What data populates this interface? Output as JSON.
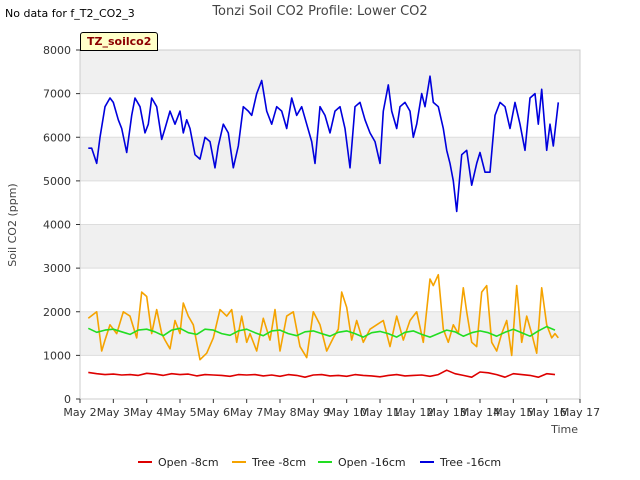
{
  "header": {
    "nodata_text": "No data for f_T2_CO2_3",
    "title": "Tonzi Soil CO2 Profile: Lower CO2",
    "site_badge": "TZ_soilco2"
  },
  "chart_data": {
    "type": "line",
    "title": "Tonzi Soil CO2 Profile: Lower CO2",
    "xlabel": "Time",
    "ylabel": "Soil CO2 (ppm)",
    "xlim": [
      2,
      17
    ],
    "ylim": [
      0,
      8000
    ],
    "x_ticks": [
      2,
      3,
      4,
      5,
      6,
      7,
      8,
      9,
      10,
      11,
      12,
      13,
      14,
      15,
      16,
      17
    ],
    "x_tick_labels": [
      "May 2",
      "May 3",
      "May 4",
      "May 5",
      "May 6",
      "May 7",
      "May 8",
      "May 9",
      "May 10",
      "May 11",
      "May 12",
      "May 13",
      "May 14",
      "May 15",
      "May 16",
      "May 17"
    ],
    "y_ticks": [
      0,
      1000,
      2000,
      3000,
      4000,
      5000,
      6000,
      7000,
      8000
    ],
    "grid": true,
    "legend_position": "bottom",
    "series": [
      {
        "name": "Open -8cm",
        "color": "#dd0000",
        "x": [
          2.25,
          2.5,
          2.75,
          3.0,
          3.25,
          3.5,
          3.75,
          4.0,
          4.25,
          4.5,
          4.75,
          5.0,
          5.25,
          5.5,
          5.75,
          6.0,
          6.25,
          6.5,
          6.75,
          7.0,
          7.25,
          7.5,
          7.75,
          8.0,
          8.25,
          8.5,
          8.75,
          9.0,
          9.25,
          9.5,
          9.75,
          10.0,
          10.25,
          10.5,
          10.75,
          11.0,
          11.25,
          11.5,
          11.75,
          12.0,
          12.25,
          12.5,
          12.75,
          13.0,
          13.25,
          13.5,
          13.75,
          14.0,
          14.25,
          14.5,
          14.75,
          15.0,
          15.25,
          15.5,
          15.75,
          16.0,
          16.25
        ],
        "values": [
          610,
          580,
          560,
          570,
          550,
          560,
          540,
          590,
          570,
          540,
          580,
          560,
          570,
          530,
          560,
          550,
          540,
          520,
          560,
          550,
          560,
          530,
          550,
          520,
          560,
          540,
          500,
          550,
          560,
          530,
          540,
          520,
          560,
          540,
          530,
          510,
          540,
          560,
          530,
          540,
          550,
          520,
          560,
          660,
          580,
          540,
          500,
          620,
          600,
          560,
          500,
          580,
          560,
          540,
          500,
          580,
          560
        ]
      },
      {
        "name": "Tree -8cm",
        "color": "#f5a300",
        "x": [
          2.25,
          2.5,
          2.65,
          2.75,
          2.9,
          3.1,
          3.3,
          3.5,
          3.7,
          3.85,
          4.0,
          4.15,
          4.3,
          4.45,
          4.55,
          4.7,
          4.85,
          5.0,
          5.1,
          5.25,
          5.4,
          5.6,
          5.8,
          6.0,
          6.2,
          6.4,
          6.55,
          6.7,
          6.85,
          7.0,
          7.1,
          7.3,
          7.5,
          7.7,
          7.85,
          8.0,
          8.2,
          8.4,
          8.6,
          8.8,
          9.0,
          9.2,
          9.4,
          9.6,
          9.75,
          9.85,
          10.0,
          10.15,
          10.3,
          10.5,
          10.7,
          10.9,
          11.1,
          11.3,
          11.5,
          11.7,
          11.9,
          12.1,
          12.3,
          12.5,
          12.6,
          12.75,
          12.9,
          13.05,
          13.2,
          13.35,
          13.5,
          13.6,
          13.75,
          13.9,
          14.05,
          14.2,
          14.35,
          14.5,
          14.65,
          14.8,
          14.95,
          15.1,
          15.25,
          15.4,
          15.55,
          15.7,
          15.85,
          16.0,
          16.15,
          16.25,
          16.35
        ],
        "values": [
          1850,
          2000,
          1100,
          1350,
          1700,
          1500,
          2000,
          1900,
          1400,
          2450,
          2350,
          1500,
          2050,
          1500,
          1350,
          1150,
          1800,
          1500,
          2200,
          1900,
          1700,
          900,
          1050,
          1400,
          2050,
          1900,
          2050,
          1300,
          1900,
          1300,
          1500,
          1100,
          1850,
          1350,
          2050,
          1100,
          1900,
          2000,
          1200,
          950,
          2000,
          1700,
          1100,
          1400,
          1600,
          2450,
          2100,
          1350,
          1800,
          1300,
          1600,
          1700,
          1800,
          1200,
          1900,
          1350,
          1800,
          2000,
          1300,
          2750,
          2600,
          2850,
          1600,
          1300,
          1700,
          1500,
          2550,
          2000,
          1300,
          1200,
          2450,
          2600,
          1300,
          1100,
          1500,
          1800,
          1000,
          2600,
          1300,
          1900,
          1500,
          1050,
          2550,
          1700,
          1400,
          1500,
          1400
        ]
      },
      {
        "name": "Open -16cm",
        "color": "#22dd22",
        "x": [
          2.25,
          2.5,
          2.75,
          3.0,
          3.25,
          3.5,
          3.75,
          4.0,
          4.25,
          4.5,
          4.75,
          5.0,
          5.25,
          5.5,
          5.75,
          6.0,
          6.25,
          6.5,
          6.75,
          7.0,
          7.25,
          7.5,
          7.75,
          8.0,
          8.25,
          8.5,
          8.75,
          9.0,
          9.25,
          9.5,
          9.75,
          10.0,
          10.25,
          10.5,
          10.75,
          11.0,
          11.25,
          11.5,
          11.75,
          12.0,
          12.25,
          12.5,
          12.75,
          13.0,
          13.25,
          13.5,
          13.75,
          14.0,
          14.25,
          14.5,
          14.75,
          15.0,
          15.25,
          15.5,
          15.75,
          16.0,
          16.25
        ],
        "values": [
          1620,
          1530,
          1580,
          1600,
          1540,
          1480,
          1580,
          1600,
          1540,
          1450,
          1580,
          1620,
          1520,
          1480,
          1600,
          1580,
          1500,
          1460,
          1560,
          1600,
          1520,
          1450,
          1560,
          1580,
          1500,
          1450,
          1540,
          1560,
          1500,
          1440,
          1530,
          1560,
          1500,
          1420,
          1520,
          1550,
          1500,
          1420,
          1530,
          1560,
          1480,
          1420,
          1500,
          1580,
          1540,
          1440,
          1520,
          1560,
          1520,
          1440,
          1530,
          1600,
          1520,
          1440,
          1560,
          1660,
          1580
        ]
      },
      {
        "name": "Tree -16cm",
        "color": "#0000dd",
        "x": [
          2.25,
          2.35,
          2.5,
          2.6,
          2.75,
          2.9,
          3.0,
          3.15,
          3.25,
          3.4,
          3.55,
          3.65,
          3.8,
          3.95,
          4.05,
          4.15,
          4.3,
          4.45,
          4.55,
          4.7,
          4.85,
          5.0,
          5.1,
          5.2,
          5.3,
          5.45,
          5.6,
          5.75,
          5.9,
          6.05,
          6.15,
          6.3,
          6.45,
          6.6,
          6.75,
          6.9,
          7.05,
          7.15,
          7.3,
          7.45,
          7.6,
          7.75,
          7.9,
          8.05,
          8.2,
          8.35,
          8.5,
          8.65,
          8.8,
          8.95,
          9.05,
          9.2,
          9.35,
          9.5,
          9.65,
          9.8,
          9.95,
          10.1,
          10.25,
          10.4,
          10.55,
          10.7,
          10.85,
          11.0,
          11.1,
          11.25,
          11.35,
          11.5,
          11.6,
          11.75,
          11.9,
          12.0,
          12.1,
          12.25,
          12.35,
          12.5,
          12.6,
          12.75,
          12.9,
          13.0,
          13.1,
          13.2,
          13.3,
          13.45,
          13.6,
          13.75,
          13.9,
          14.0,
          14.15,
          14.3,
          14.45,
          14.6,
          14.75,
          14.9,
          15.05,
          15.2,
          15.35,
          15.5,
          15.65,
          15.75,
          15.85,
          16.0,
          16.1,
          16.2,
          16.35
        ],
        "values": [
          5750,
          5750,
          5400,
          6000,
          6700,
          6900,
          6800,
          6400,
          6200,
          5650,
          6500,
          6900,
          6700,
          6100,
          6300,
          6900,
          6700,
          5950,
          6200,
          6600,
          6300,
          6600,
          6100,
          6400,
          6200,
          5600,
          5500,
          6000,
          5900,
          5300,
          5800,
          6300,
          6100,
          5300,
          5800,
          6700,
          6600,
          6500,
          7000,
          7300,
          6600,
          6300,
          6700,
          6600,
          6200,
          6900,
          6500,
          6700,
          6300,
          5900,
          5400,
          6700,
          6500,
          6100,
          6600,
          6700,
          6200,
          5300,
          6700,
          6800,
          6400,
          6100,
          5900,
          5400,
          6600,
          7200,
          6600,
          6200,
          6700,
          6800,
          6600,
          6000,
          6300,
          7000,
          6700,
          7400,
          6800,
          6700,
          6200,
          5700,
          5400,
          5000,
          4300,
          5600,
          5700,
          4900,
          5400,
          5650,
          5200,
          5200,
          6500,
          6800,
          6700,
          6200,
          6800,
          6300,
          5700,
          6900,
          7000,
          6300,
          7100,
          5700,
          6300,
          5800,
          6800
        ]
      }
    ]
  }
}
